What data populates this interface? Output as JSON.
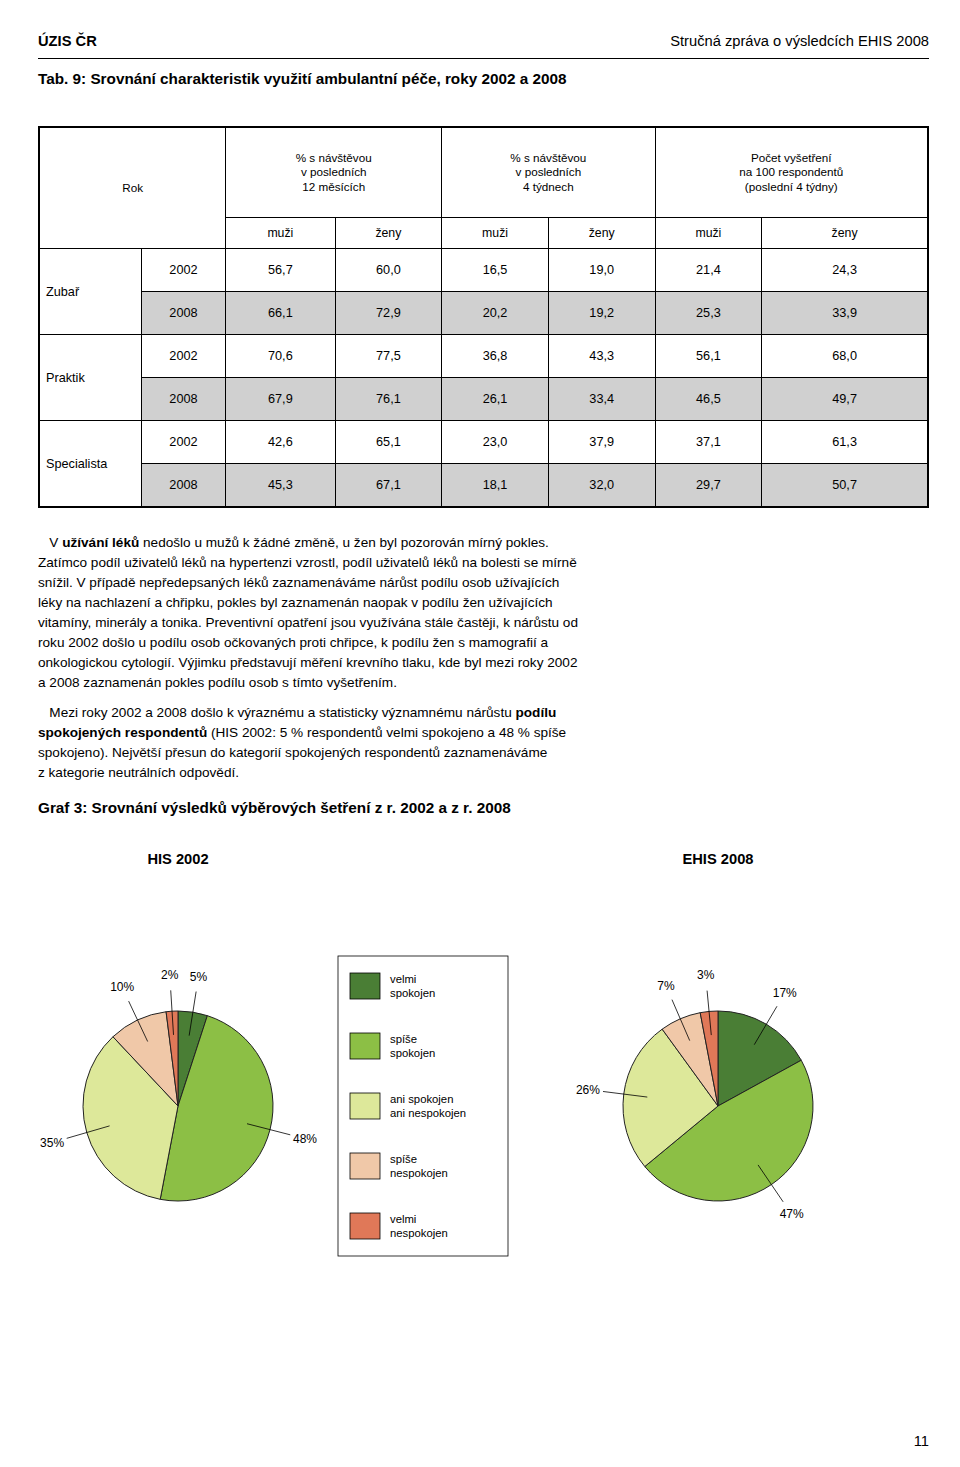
{
  "header": {
    "left": "ÚZIS ČR",
    "right": "Stručná zpráva o výsledcích EHIS 2008"
  },
  "table": {
    "title": "Tab. 9: Srovnání charakteristik využití ambulantní péče, roky 2002 a 2008",
    "corner": "Rok",
    "groups": [
      "% s návštěvou\nv posledních\n12 měsících",
      "% s návštěvou\nv posledních\n4 týdnech",
      "Počet vyšetření\nna 100 respondentů\n(poslední 4 týdny)"
    ],
    "subheaders": [
      "muži",
      "ženy"
    ],
    "sections": [
      {
        "label": "Zubař",
        "rows": [
          {
            "year": "2002",
            "cells": [
              {
                "value": 56.7,
                "label": "56,7"
              },
              {
                "value": 60.0,
                "label": "60,0"
              },
              {
                "value": 16.5,
                "label": "16,5"
              },
              {
                "value": 19.0,
                "label": "19,0"
              },
              {
                "value": 21.4,
                "label": "21,4"
              },
              {
                "value": 24.3,
                "label": "24,3"
              }
            ]
          },
          {
            "year": "2008",
            "color": "#d0d0d0",
            "cells": [
              {
                "value": 66.1,
                "label": "66,1"
              },
              {
                "value": 72.9,
                "label": "72,9"
              },
              {
                "value": 20.2,
                "label": "20,2"
              },
              {
                "value": 19.2,
                "label": "19,2"
              },
              {
                "value": 25.3,
                "label": "25,3"
              },
              {
                "value": 33.9,
                "label": "33,9"
              }
            ]
          }
        ]
      },
      {
        "label": "Praktik",
        "rows": [
          {
            "year": "2002",
            "cells": [
              {
                "value": 70.6,
                "label": "70,6"
              },
              {
                "value": 77.5,
                "label": "77,5"
              },
              {
                "value": 36.8,
                "label": "36,8"
              },
              {
                "value": 43.3,
                "label": "43,3"
              },
              {
                "value": 56.1,
                "label": "56,1"
              },
              {
                "value": 68.0,
                "label": "68,0"
              }
            ]
          },
          {
            "year": "2008",
            "color": "#d0d0d0",
            "cells": [
              {
                "value": 67.9,
                "label": "67,9"
              },
              {
                "value": 76.1,
                "label": "76,1"
              },
              {
                "value": 26.1,
                "label": "26,1"
              },
              {
                "value": 33.4,
                "label": "33,4"
              },
              {
                "value": 46.5,
                "label": "46,5"
              },
              {
                "value": 49.7,
                "label": "49,7"
              }
            ]
          }
        ]
      },
      {
        "label": "Specialista",
        "rows": [
          {
            "year": "2002",
            "cells": [
              {
                "value": 42.6,
                "label": "42,6"
              },
              {
                "value": 65.1,
                "label": "65,1"
              },
              {
                "value": 23.0,
                "label": "23,0"
              },
              {
                "value": 37.9,
                "label": "37,9"
              },
              {
                "value": 37.1,
                "label": "37,1"
              },
              {
                "value": 61.3,
                "label": "61,3"
              }
            ]
          },
          {
            "year": "2008",
            "color": "#d0d0d0",
            "cells": [
              {
                "value": 45.3,
                "label": "45,3"
              },
              {
                "value": 67.1,
                "label": "67,1"
              },
              {
                "value": 18.1,
                "label": "18,1"
              },
              {
                "value": 32.0,
                "label": "32,0"
              },
              {
                "value": 29.7,
                "label": "29,7"
              },
              {
                "value": 50.7,
                "label": "50,7"
              }
            ]
          }
        ]
      }
    ]
  },
  "body": [
    [
      [
        {
          "text": "   V "
        },
        {
          "bold": "užívání léků"
        },
        {
          "text": " nedošlo u mužů k žádné změně, u žen byl pozorován mírný pokles."
        }
      ],
      [
        {
          "text": "Zatímco podíl uživatelů léků na hypertenzi vzrostl, podíl uživatelů léků na bolesti se mírně"
        }
      ],
      [
        {
          "text": "snížil. V případě nepředepsaných léků zaznamenáváme nárůst podílu osob užívajících"
        }
      ],
      [
        {
          "text": "léky na nachlazení a chřipku, pokles byl zaznamenán naopak v podílu žen užívajících"
        }
      ],
      [
        {
          "text": "vitamíny, minerály a tonika. Preventivní opatření jsou využívána stále častěji, k nárůstu od"
        }
      ],
      [
        {
          "text": "roku 2002 došlo u podílu osob očkovaných proti chřipce, k podílu žen s mamografií a"
        }
      ],
      [
        {
          "text": "onkologickou cytologií. Výjimku představují měření krevního tlaku, kde byl mezi roky 2002"
        }
      ],
      [
        {
          "text": "a 2008 zaznamenán pokles podílu osob s tímto vyšetřením."
        }
      ]
    ],
    [
      [
        {
          "text": "   Mezi roky 2002 a 2008 došlo k výraznému a statisticky významnému nárůstu "
        },
        {
          "bold": "podílu"
        }
      ],
      [
        {
          "bold": "spokojených respondentů"
        },
        {
          "text": " (HIS 2002: 5 % respondentů velmi spokojeno a 48 % spíše"
        }
      ],
      [
        {
          "text": "spokojeno). Největší přesun do kategorií spokojených respondentů zaznamenáváme"
        }
      ],
      [
        {
          "text": "z kategorie neutrálních odpovědí."
        }
      ]
    ]
  ],
  "figure_title": "Graf 3: Srovnání výsledků výběrových šetření z r. 2002 a z r. 2008",
  "chart_data": [
    {
      "type": "pie",
      "title": "HIS 2002",
      "categories": [
        "velmi\nspokojen",
        "spíše\nspokojen",
        "ani spokojen\nani nespokojen",
        "spíše\nnespokojen",
        "velmi\nnespokojen"
      ],
      "values": [
        5,
        48,
        35,
        10,
        2
      ],
      "value_labels": [
        "5%",
        "48%",
        "35%",
        "10%",
        "2%"
      ],
      "colors": [
        "#4a7e35",
        "#8cbf45",
        "#dde89a",
        "#f0c8a8",
        "#e07858"
      ],
      "data_labels": true,
      "legend": "right"
    },
    {
      "type": "pie",
      "title": "EHIS 2008",
      "categories": [
        "velmi\nspokojen",
        "spíše\nspokojen",
        "ani spokojen\nani nespokojen",
        "spíše\nnespokojen",
        "velmi\nnespokojen"
      ],
      "values": [
        17,
        47,
        26,
        7,
        3
      ],
      "value_labels": [
        "17%",
        "47%",
        "26%",
        "7%",
        "3%"
      ],
      "colors": [
        "#4a7e35",
        "#8cbf45",
        "#dde89a",
        "#f0c8a8",
        "#e07858"
      ],
      "data_labels": true
    }
  ],
  "page_number": 11
}
